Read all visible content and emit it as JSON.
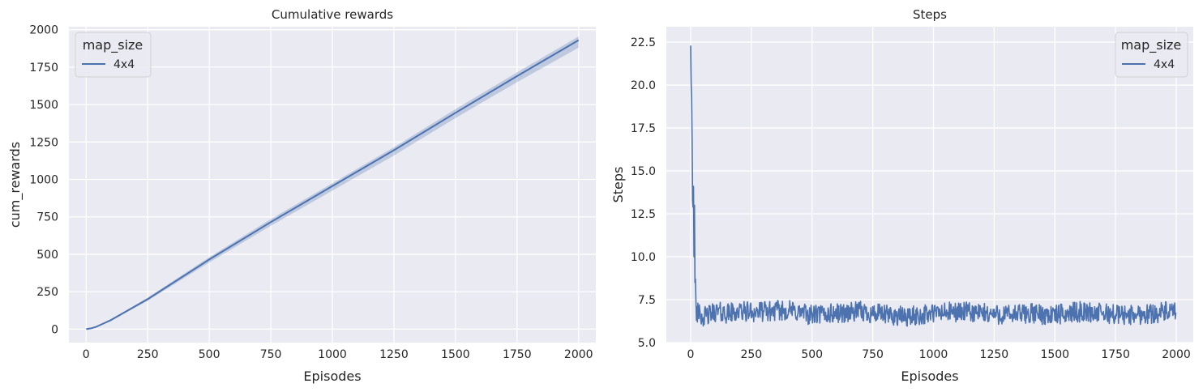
{
  "chart_data": [
    {
      "type": "line",
      "title": "Cumulative rewards",
      "xlabel": "Episodes",
      "ylabel": "cum_rewards",
      "xlim": [
        -70,
        2070
      ],
      "ylim": [
        -90,
        2020
      ],
      "xticks": [
        0,
        250,
        500,
        750,
        1000,
        1250,
        1500,
        1750,
        2000
      ],
      "xtick_labels": [
        "0",
        "250",
        "500",
        "750",
        "1000",
        "1250",
        "1500",
        "1750",
        "2000"
      ],
      "yticks": [
        0,
        250,
        500,
        750,
        1000,
        1250,
        1500,
        1750,
        2000
      ],
      "ytick_labels": [
        "0",
        "250",
        "500",
        "750",
        "1000",
        "1250",
        "1500",
        "1750",
        "2000"
      ],
      "grid": true,
      "legend": {
        "title": "map_size",
        "position": "upper-left"
      },
      "series": [
        {
          "name": "4x4",
          "color": "#4c72b0",
          "x": [
            0,
            20,
            40,
            100,
            250,
            500,
            750,
            1000,
            1250,
            1500,
            1750,
            2000
          ],
          "y": [
            0,
            5,
            15,
            60,
            200,
            465,
            715,
            955,
            1195,
            1445,
            1690,
            1930
          ],
          "band_upper": [
            0,
            6,
            17,
            65,
            210,
            480,
            735,
            975,
            1215,
            1470,
            1715,
            1955
          ],
          "band_lower": [
            0,
            4,
            13,
            55,
            190,
            445,
            690,
            925,
            1160,
            1410,
            1650,
            1880
          ]
        }
      ]
    },
    {
      "type": "line",
      "title": "Steps",
      "xlabel": "Episodes",
      "ylabel": "Steps",
      "xlim": [
        -100,
        2070
      ],
      "ylim": [
        5.0,
        23.4
      ],
      "xticks": [
        0,
        250,
        500,
        750,
        1000,
        1250,
        1500,
        1750,
        2000
      ],
      "xtick_labels": [
        "0",
        "250",
        "500",
        "750",
        "1000",
        "1250",
        "1500",
        "1750",
        "2000"
      ],
      "yticks": [
        5.0,
        7.5,
        10.0,
        12.5,
        15.0,
        17.5,
        20.0,
        22.5
      ],
      "ytick_labels": [
        "5.0",
        "7.5",
        "10.0",
        "12.5",
        "15.0",
        "17.5",
        "20.0",
        "22.5"
      ],
      "grid": true,
      "legend": {
        "title": "map_size",
        "position": "upper-right"
      },
      "series": [
        {
          "name": "4x4",
          "color": "#4c72b0",
          "x": [
            0,
            1,
            2,
            3,
            4,
            5,
            6,
            7,
            8,
            9,
            10,
            12,
            14,
            16,
            18,
            20,
            22,
            24,
            26,
            28,
            30,
            33,
            36,
            40,
            60,
            100,
            150,
            200,
            300,
            400,
            500,
            600,
            700,
            800,
            900,
            1000,
            1100,
            1200,
            1300,
            1400,
            1500,
            1600,
            1700,
            1800,
            1900,
            1950,
            2000
          ],
          "y": [
            22.3,
            14.4,
            20.1,
            15.0,
            19.3,
            13.1,
            16.7,
            14.2,
            13.3,
            14.4,
            12.9,
            14.1,
            10.0,
            13.0,
            8.5,
            8.7,
            7.4,
            6.3,
            7.1,
            6.2,
            7.3,
            6.0,
            7.2,
            6.6,
            6.5,
            6.8,
            6.7,
            6.8,
            6.8,
            6.9,
            6.6,
            6.7,
            6.8,
            6.6,
            6.5,
            6.7,
            6.8,
            6.7,
            6.6,
            6.7,
            6.6,
            6.8,
            6.7,
            6.6,
            6.7,
            6.8,
            6.7
          ],
          "noise_amplitude": 0.6
        }
      ]
    }
  ]
}
